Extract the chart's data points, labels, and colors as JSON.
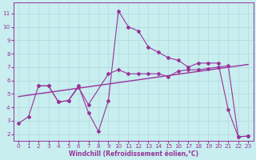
{
  "xlabel": "Windchill (Refroidissement éolien,°C)",
  "bg_color": "#c8eef0",
  "grid_color": "#b0d8dc",
  "line_color": "#993399",
  "x_ticks": [
    0,
    1,
    2,
    3,
    4,
    5,
    6,
    7,
    8,
    9,
    10,
    11,
    12,
    13,
    14,
    15,
    16,
    17,
    18,
    19,
    20,
    21,
    22,
    23
  ],
  "y_ticks": [
    2,
    3,
    4,
    5,
    6,
    7,
    8,
    9,
    10,
    11
  ],
  "xlim": [
    -0.5,
    23.5
  ],
  "ylim": [
    1.5,
    11.8
  ],
  "series1_x": [
    0,
    1,
    2,
    3,
    4,
    5,
    6,
    7,
    8,
    9,
    10,
    11,
    12,
    13,
    14,
    15,
    16,
    17,
    18,
    19,
    20,
    21,
    22,
    23
  ],
  "series1_y": [
    2.8,
    3.3,
    5.6,
    5.6,
    4.4,
    4.5,
    5.6,
    3.6,
    2.2,
    4.5,
    11.2,
    10.0,
    9.7,
    8.5,
    8.1,
    7.7,
    7.5,
    7.0,
    7.3,
    7.3,
    7.3,
    3.8,
    1.8,
    1.85
  ],
  "series2_x": [
    2,
    3,
    4,
    5,
    6,
    7,
    9,
    10,
    11,
    12,
    13,
    14,
    15,
    16,
    17,
    18,
    19,
    20,
    21,
    22,
    23
  ],
  "series2_y": [
    5.6,
    5.6,
    4.4,
    4.5,
    5.5,
    4.2,
    6.5,
    6.8,
    6.5,
    6.5,
    6.5,
    6.5,
    6.3,
    6.7,
    6.8,
    6.8,
    6.9,
    7.0,
    7.1,
    1.8,
    1.85
  ],
  "trend_x": [
    0,
    23
  ],
  "trend_y": [
    4.8,
    7.2
  ]
}
